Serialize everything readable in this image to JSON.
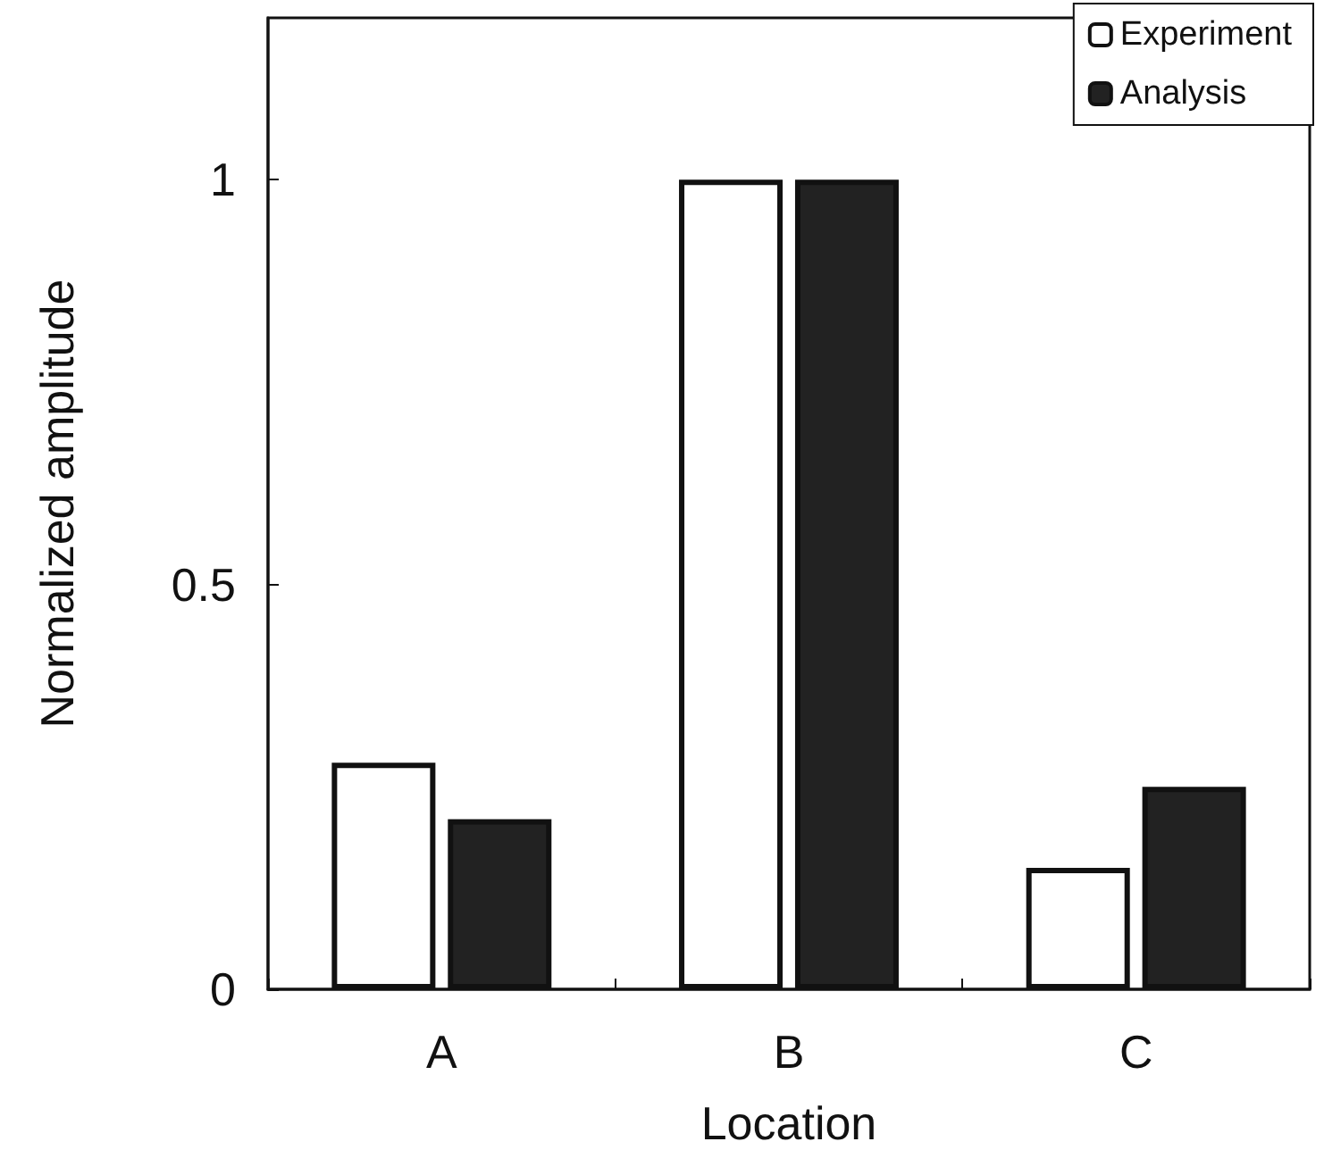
{
  "chart_data": {
    "type": "bar",
    "xlabel": "Location",
    "ylabel": "Normalized amplitude",
    "categories": [
      "A",
      "B",
      "C"
    ],
    "series": [
      {
        "name": "Experiment",
        "color": "#ffffff",
        "values": [
          0.28,
          1.0,
          0.15
        ]
      },
      {
        "name": "Analysis",
        "color": "#222222",
        "values": [
          0.21,
          1.0,
          0.25
        ]
      }
    ],
    "ylim": [
      0,
      1.2
    ],
    "yticks": [
      0,
      0.5,
      1
    ],
    "grid": false,
    "legend": "top right"
  }
}
